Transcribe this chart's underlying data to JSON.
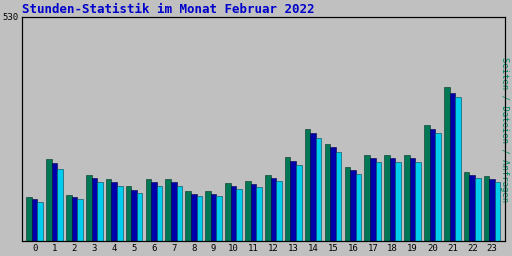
{
  "title": "Stunden-Statistik im Monat Februar 2022",
  "title_color": "#0000cc",
  "title_fontsize": 9,
  "background_color": "#c0c0c0",
  "plot_bg_color": "#c0c0c0",
  "ylabel": "Seiten / Dateien / Anfragen",
  "ylabel_color": "#008866",
  "ylabel_fontsize": 6.5,
  "hours": [
    0,
    1,
    2,
    3,
    4,
    5,
    6,
    7,
    8,
    9,
    10,
    11,
    12,
    13,
    14,
    15,
    16,
    17,
    18,
    19,
    20,
    21,
    22,
    23
  ],
  "seiten": [
    105,
    195,
    110,
    158,
    148,
    130,
    148,
    148,
    120,
    120,
    138,
    142,
    158,
    200,
    265,
    230,
    175,
    205,
    205,
    205,
    275,
    365,
    165,
    155
  ],
  "dateien": [
    100,
    185,
    105,
    150,
    140,
    122,
    140,
    140,
    113,
    113,
    130,
    136,
    150,
    190,
    255,
    222,
    168,
    196,
    196,
    196,
    265,
    350,
    158,
    148
  ],
  "anfragen": [
    93,
    170,
    100,
    140,
    130,
    115,
    132,
    132,
    107,
    107,
    123,
    128,
    142,
    180,
    245,
    212,
    160,
    188,
    188,
    188,
    255,
    340,
    150,
    140
  ],
  "ylim": [
    0,
    530
  ],
  "ytick_val": 530,
  "bar_width": 0.28,
  "colors": [
    "#007755",
    "#0000aa",
    "#00ccee"
  ],
  "grid_color": "#aaaaaa",
  "border_color": "#000000",
  "fig_width": 5.12,
  "fig_height": 2.56,
  "dpi": 100
}
